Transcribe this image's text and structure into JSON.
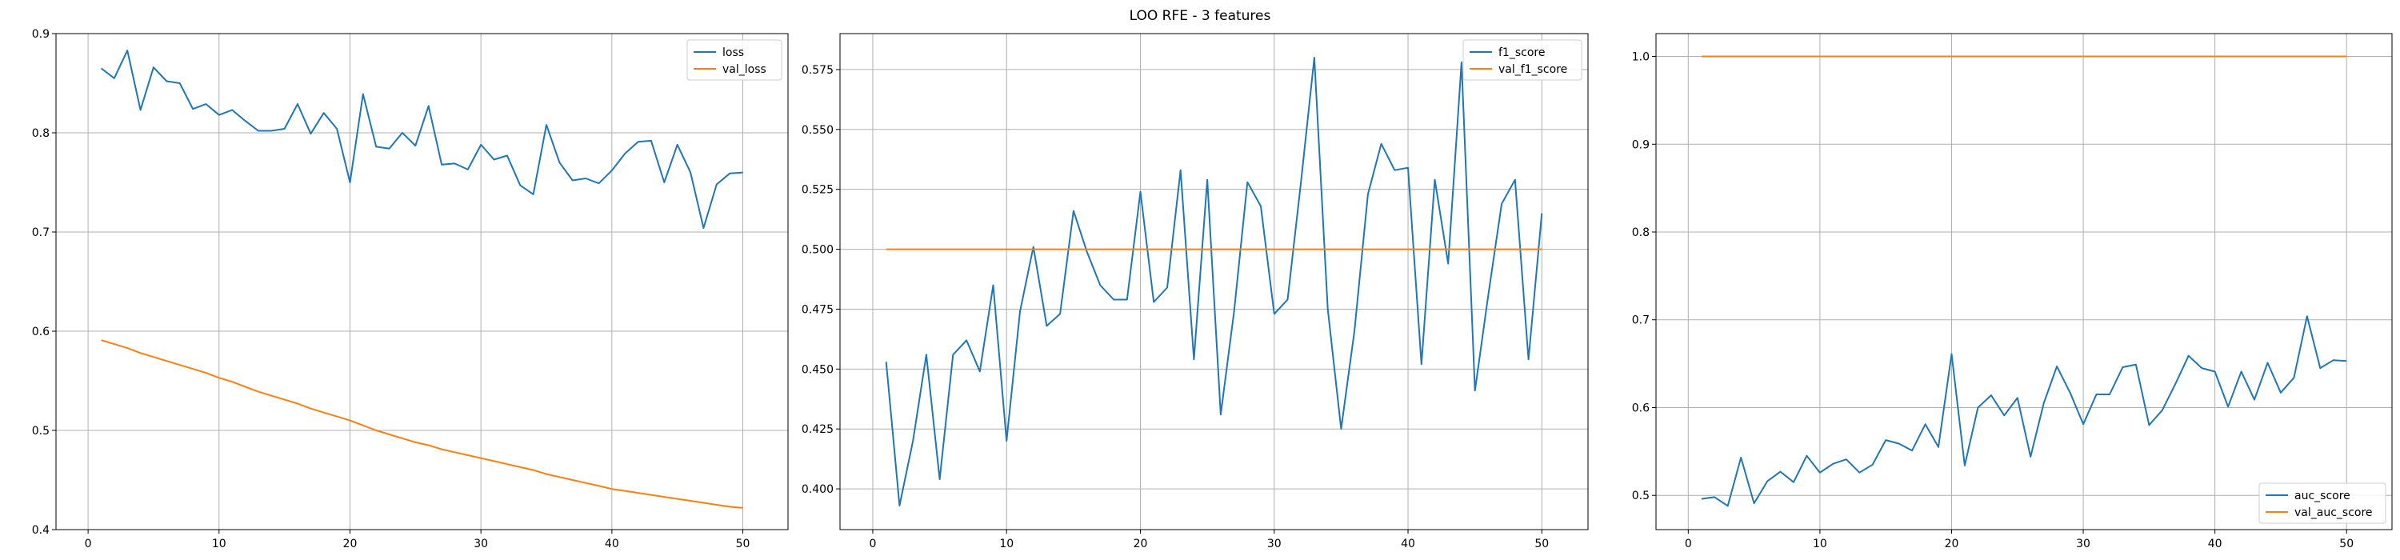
{
  "suptitle": "LOO RFE - 3 features",
  "colors": {
    "series1": "#1f77b4",
    "series2": "#ff7f0e",
    "grid": "#b0b0b0",
    "axes": "#000000"
  },
  "chart_data": [
    {
      "type": "line",
      "title": "",
      "xlabel": "",
      "ylabel": "",
      "xlim": [
        -2.45,
        53.45
      ],
      "ylim": [
        0.4,
        0.9
      ],
      "xticks": [
        0,
        10,
        20,
        30,
        40,
        50
      ],
      "yticks": [
        0.4,
        0.5,
        0.6,
        0.7,
        0.8,
        0.9
      ],
      "ytick_labels": [
        "0.4",
        "0.5",
        "0.6",
        "0.7",
        "0.8",
        "0.9"
      ],
      "grid": true,
      "legend_position": "top-right",
      "x": [
        1,
        2,
        3,
        4,
        5,
        6,
        7,
        8,
        9,
        10,
        11,
        12,
        13,
        14,
        15,
        16,
        17,
        18,
        19,
        20,
        21,
        22,
        23,
        24,
        25,
        26,
        27,
        28,
        29,
        30,
        31,
        32,
        33,
        34,
        35,
        36,
        37,
        38,
        39,
        40,
        41,
        42,
        43,
        44,
        45,
        46,
        47,
        48,
        49,
        50
      ],
      "series": [
        {
          "name": "loss",
          "color": "#1f77b4",
          "values": [
            0.865,
            0.855,
            0.883,
            0.823,
            0.866,
            0.852,
            0.85,
            0.824,
            0.829,
            0.818,
            0.823,
            0.812,
            0.802,
            0.802,
            0.804,
            0.829,
            0.799,
            0.82,
            0.804,
            0.75,
            0.839,
            0.786,
            0.784,
            0.8,
            0.787,
            0.827,
            0.768,
            0.769,
            0.763,
            0.788,
            0.773,
            0.777,
            0.747,
            0.738,
            0.808,
            0.77,
            0.752,
            0.754,
            0.749,
            0.762,
            0.779,
            0.791,
            0.792,
            0.75,
            0.788,
            0.76,
            0.704,
            0.748,
            0.759,
            0.76
          ]
        },
        {
          "name": "val_loss",
          "color": "#ff7f0e",
          "values": [
            0.591,
            0.587,
            0.583,
            0.578,
            0.574,
            0.57,
            0.566,
            0.562,
            0.558,
            0.553,
            0.549,
            0.544,
            0.539,
            0.535,
            0.531,
            0.527,
            0.522,
            0.518,
            0.514,
            0.51,
            0.505,
            0.5,
            0.496,
            0.492,
            0.488,
            0.485,
            0.481,
            0.478,
            0.475,
            0.472,
            0.469,
            0.466,
            0.463,
            0.46,
            0.456,
            0.453,
            0.45,
            0.447,
            0.444,
            0.441,
            0.439,
            0.437,
            0.435,
            0.433,
            0.431,
            0.429,
            0.427,
            0.425,
            0.423,
            0.422
          ]
        }
      ]
    },
    {
      "type": "line",
      "title": "",
      "xlabel": "",
      "ylabel": "",
      "xlim": [
        -2.45,
        53.45
      ],
      "ylim": [
        0.383,
        0.59
      ],
      "xticks": [
        0,
        10,
        20,
        30,
        40,
        50
      ],
      "yticks": [
        0.4,
        0.425,
        0.45,
        0.475,
        0.5,
        0.525,
        0.55,
        0.575
      ],
      "ytick_labels": [
        "0.400",
        "0.425",
        "0.450",
        "0.475",
        "0.500",
        "0.525",
        "0.550",
        "0.575"
      ],
      "grid": true,
      "legend_position": "top-right",
      "x": [
        1,
        2,
        3,
        4,
        5,
        6,
        7,
        8,
        9,
        10,
        11,
        12,
        13,
        14,
        15,
        16,
        17,
        18,
        19,
        20,
        21,
        22,
        23,
        24,
        25,
        26,
        27,
        28,
        29,
        30,
        31,
        32,
        33,
        34,
        35,
        36,
        37,
        38,
        39,
        40,
        41,
        42,
        43,
        44,
        45,
        46,
        47,
        48,
        49,
        50
      ],
      "series": [
        {
          "name": "f1_score",
          "color": "#1f77b4",
          "values": [
            0.453,
            0.393,
            0.42,
            0.456,
            0.404,
            0.456,
            0.462,
            0.449,
            0.485,
            0.42,
            0.474,
            0.501,
            0.468,
            0.473,
            0.516,
            0.499,
            0.485,
            0.479,
            0.479,
            0.524,
            0.478,
            0.484,
            0.533,
            0.454,
            0.529,
            0.431,
            0.474,
            0.528,
            0.518,
            0.473,
            0.479,
            0.528,
            0.58,
            0.475,
            0.425,
            0.466,
            0.523,
            0.544,
            0.533,
            0.534,
            0.452,
            0.529,
            0.494,
            0.578,
            0.441,
            0.481,
            0.519,
            0.529,
            0.454,
            0.515
          ]
        },
        {
          "name": "val_f1_score",
          "color": "#ff7f0e",
          "values": [
            0.5,
            0.5,
            0.5,
            0.5,
            0.5,
            0.5,
            0.5,
            0.5,
            0.5,
            0.5,
            0.5,
            0.5,
            0.5,
            0.5,
            0.5,
            0.5,
            0.5,
            0.5,
            0.5,
            0.5,
            0.5,
            0.5,
            0.5,
            0.5,
            0.5,
            0.5,
            0.5,
            0.5,
            0.5,
            0.5,
            0.5,
            0.5,
            0.5,
            0.5,
            0.5,
            0.5,
            0.5,
            0.5,
            0.5,
            0.5,
            0.5,
            0.5,
            0.5,
            0.5,
            0.5,
            0.5,
            0.5,
            0.5,
            0.5,
            0.5
          ]
        }
      ]
    },
    {
      "type": "line",
      "title": "",
      "xlabel": "",
      "ylabel": "",
      "xlim": [
        -2.45,
        53.45
      ],
      "ylim": [
        0.461,
        1.026
      ],
      "xticks": [
        0,
        10,
        20,
        30,
        40,
        50
      ],
      "yticks": [
        0.5,
        0.6,
        0.7,
        0.8,
        0.9,
        1.0
      ],
      "ytick_labels": [
        "0.5",
        "0.6",
        "0.7",
        "0.8",
        "0.9",
        "1.0"
      ],
      "grid": true,
      "legend_position": "bottom-right",
      "x": [
        1,
        2,
        3,
        4,
        5,
        6,
        7,
        8,
        9,
        10,
        11,
        12,
        13,
        14,
        15,
        16,
        17,
        18,
        19,
        20,
        21,
        22,
        23,
        24,
        25,
        26,
        27,
        28,
        29,
        30,
        31,
        32,
        33,
        34,
        35,
        36,
        37,
        38,
        39,
        40,
        41,
        42,
        43,
        44,
        45,
        46,
        47,
        48,
        49,
        50
      ],
      "series": [
        {
          "name": "auc_score",
          "color": "#1f77b4",
          "values": [
            0.496,
            0.498,
            0.488,
            0.543,
            0.491,
            0.516,
            0.527,
            0.515,
            0.545,
            0.526,
            0.536,
            0.541,
            0.526,
            0.535,
            0.563,
            0.559,
            0.551,
            0.581,
            0.555,
            0.661,
            0.534,
            0.6,
            0.614,
            0.591,
            0.611,
            0.544,
            0.605,
            0.647,
            0.617,
            0.581,
            0.615,
            0.615,
            0.646,
            0.649,
            0.58,
            0.597,
            0.627,
            0.659,
            0.645,
            0.641,
            0.601,
            0.641,
            0.609,
            0.651,
            0.617,
            0.634,
            0.704,
            0.645,
            0.654,
            0.653
          ]
        },
        {
          "name": "val_auc_score",
          "color": "#ff7f0e",
          "values": [
            1.0,
            1.0,
            1.0,
            1.0,
            1.0,
            1.0,
            1.0,
            1.0,
            1.0,
            1.0,
            1.0,
            1.0,
            1.0,
            1.0,
            1.0,
            1.0,
            1.0,
            1.0,
            1.0,
            1.0,
            1.0,
            1.0,
            1.0,
            1.0,
            1.0,
            1.0,
            1.0,
            1.0,
            1.0,
            1.0,
            1.0,
            1.0,
            1.0,
            1.0,
            1.0,
            1.0,
            1.0,
            1.0,
            1.0,
            1.0,
            1.0,
            1.0,
            1.0,
            1.0,
            1.0,
            1.0,
            1.0,
            1.0,
            1.0,
            1.0
          ]
        }
      ]
    }
  ]
}
